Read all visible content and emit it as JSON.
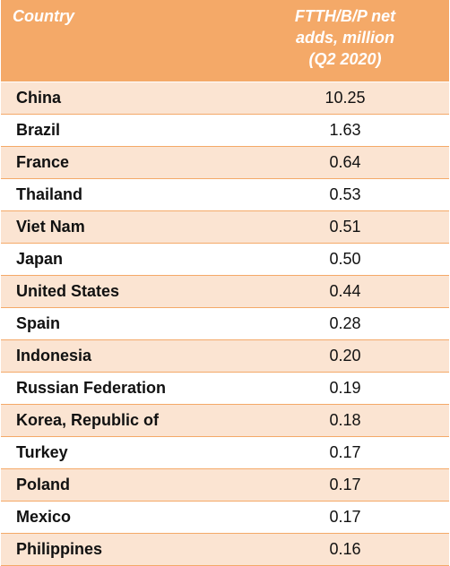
{
  "table": {
    "header": {
      "country": "Country",
      "value_line1": "FTTH/B/P net",
      "value_line2": "adds, million",
      "value_line3": "(Q2 2020)"
    },
    "rows": [
      {
        "country": "China",
        "value": "10.25"
      },
      {
        "country": "Brazil",
        "value": "1.63"
      },
      {
        "country": "France",
        "value": "0.64"
      },
      {
        "country": "Thailand",
        "value": "0.53"
      },
      {
        "country": "Viet Nam",
        "value": "0.51"
      },
      {
        "country": "Japan",
        "value": "0.50"
      },
      {
        "country": "United States",
        "value": "0.44"
      },
      {
        "country": "Spain",
        "value": "0.28"
      },
      {
        "country": "Indonesia",
        "value": "0.20"
      },
      {
        "country": "Russian Federation",
        "value": "0.19"
      },
      {
        "country": "Korea, Republic of",
        "value": "0.18"
      },
      {
        "country": "Turkey",
        "value": "0.17"
      },
      {
        "country": "Poland",
        "value": "0.17"
      },
      {
        "country": "Mexico",
        "value": "0.17"
      },
      {
        "country": "Philippines",
        "value": "0.16"
      }
    ]
  },
  "colors": {
    "header_bg": "#f4a968",
    "stripe_bg": "#fbe4d2",
    "header_text": "#ffffff"
  }
}
